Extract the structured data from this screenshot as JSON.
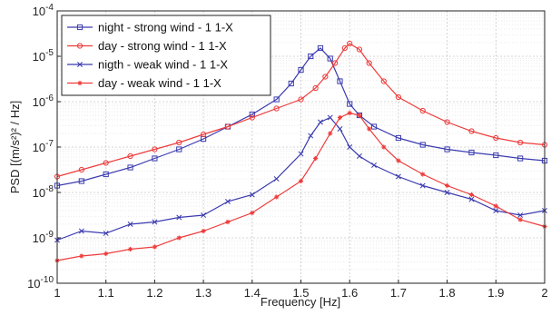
{
  "chart_data": {
    "type": "line",
    "xlabel": "Frequency [Hz]",
    "ylabel": "PSD [(m/s²)² / Hz]",
    "xlim": [
      1,
      2
    ],
    "ylim_log10": [
      -10,
      -4
    ],
    "y_scale": "log",
    "grid": true,
    "legend_position": "top-left",
    "x_ticks": [
      1,
      1.1,
      1.2,
      1.3,
      1.4,
      1.5,
      1.6,
      1.7,
      1.8,
      1.9,
      2
    ],
    "x_tick_labels": [
      "1",
      "1.1",
      "1.2",
      "1.3",
      "1.4",
      "1.5",
      "1.6",
      "1.7",
      "1.8",
      "1.9",
      "2"
    ],
    "y_ticks_log10": [
      -10,
      -9,
      -8,
      -7,
      -6,
      -5,
      -4
    ],
    "y_tick_labels": [
      {
        "base": "10",
        "exp": "-10"
      },
      {
        "base": "10",
        "exp": "-9"
      },
      {
        "base": "10",
        "exp": "-8"
      },
      {
        "base": "10",
        "exp": "-7"
      },
      {
        "base": "10",
        "exp": "-6"
      },
      {
        "base": "10",
        "exp": "-5"
      },
      {
        "base": "10",
        "exp": "-4"
      }
    ],
    "series": [
      {
        "name": "night - strong wind - 1 1-X",
        "color": "#3b3bb0",
        "marker": "square",
        "x": [
          1.0,
          1.05,
          1.1,
          1.15,
          1.2,
          1.25,
          1.3,
          1.35,
          1.4,
          1.45,
          1.48,
          1.5,
          1.52,
          1.54,
          1.56,
          1.58,
          1.6,
          1.62,
          1.65,
          1.7,
          1.75,
          1.8,
          1.85,
          1.9,
          1.95,
          2.0
        ],
        "log10y": [
          -7.85,
          -7.75,
          -7.6,
          -7.45,
          -7.25,
          -7.05,
          -6.82,
          -6.55,
          -6.28,
          -5.95,
          -5.6,
          -5.3,
          -5.0,
          -4.82,
          -5.05,
          -5.55,
          -6.05,
          -6.3,
          -6.55,
          -6.8,
          -6.95,
          -7.05,
          -7.12,
          -7.18,
          -7.25,
          -7.3
        ]
      },
      {
        "name": "day - strong wind - 1 1-X",
        "color": "#ee3b3b",
        "marker": "circle",
        "x": [
          1.0,
          1.05,
          1.1,
          1.15,
          1.2,
          1.25,
          1.3,
          1.35,
          1.4,
          1.45,
          1.5,
          1.53,
          1.55,
          1.57,
          1.59,
          1.6,
          1.62,
          1.64,
          1.67,
          1.7,
          1.75,
          1.8,
          1.85,
          1.9,
          1.95,
          2.0
        ],
        "log10y": [
          -7.65,
          -7.5,
          -7.35,
          -7.2,
          -7.05,
          -6.9,
          -6.72,
          -6.55,
          -6.35,
          -6.15,
          -5.95,
          -5.7,
          -5.45,
          -5.15,
          -4.82,
          -4.72,
          -4.85,
          -5.15,
          -5.55,
          -5.9,
          -6.2,
          -6.45,
          -6.65,
          -6.8,
          -6.9,
          -6.95
        ]
      },
      {
        "name": "nigth - weak wind - 1 1-X",
        "color": "#3b3bb0",
        "marker": "x",
        "x": [
          1.0,
          1.05,
          1.1,
          1.15,
          1.2,
          1.25,
          1.3,
          1.35,
          1.4,
          1.45,
          1.5,
          1.52,
          1.54,
          1.56,
          1.58,
          1.6,
          1.62,
          1.65,
          1.7,
          1.75,
          1.8,
          1.85,
          1.9,
          1.95,
          2.0
        ],
        "log10y": [
          -9.05,
          -8.85,
          -8.9,
          -8.7,
          -8.65,
          -8.55,
          -8.5,
          -8.2,
          -8.05,
          -7.7,
          -7.15,
          -6.75,
          -6.45,
          -6.35,
          -6.6,
          -7.0,
          -7.2,
          -7.4,
          -7.65,
          -7.85,
          -8.0,
          -8.15,
          -8.4,
          -8.5,
          -8.4
        ]
      },
      {
        "name": "day - weak wind - 1 1-X",
        "color": "#ee3b3b",
        "marker": "star",
        "x": [
          1.0,
          1.05,
          1.1,
          1.15,
          1.2,
          1.25,
          1.3,
          1.35,
          1.4,
          1.45,
          1.5,
          1.53,
          1.56,
          1.58,
          1.6,
          1.62,
          1.64,
          1.67,
          1.7,
          1.75,
          1.8,
          1.85,
          1.9,
          1.95,
          2.0
        ],
        "log10y": [
          -9.5,
          -9.4,
          -9.35,
          -9.25,
          -9.2,
          -9.0,
          -8.85,
          -8.65,
          -8.45,
          -8.1,
          -7.75,
          -7.25,
          -6.7,
          -6.35,
          -6.25,
          -6.3,
          -6.6,
          -7.0,
          -7.3,
          -7.6,
          -7.85,
          -8.05,
          -8.3,
          -8.6,
          -8.75
        ]
      }
    ]
  }
}
